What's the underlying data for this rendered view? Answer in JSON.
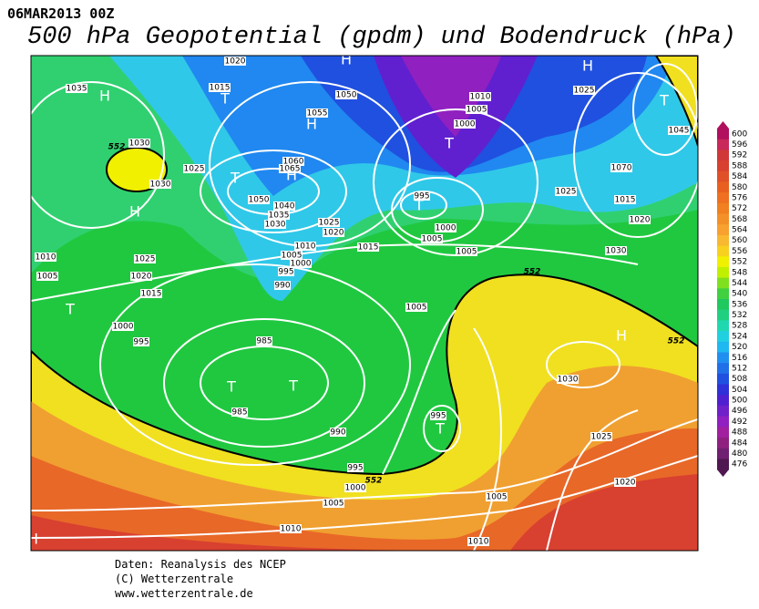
{
  "header": {
    "date": "06MAR2013 00Z",
    "title": "500 hPa Geopotential (gpdm) und Bodendruck (hPa)"
  },
  "colorbar": {
    "labels": [
      600,
      596,
      592,
      588,
      584,
      580,
      576,
      572,
      568,
      564,
      560,
      556,
      552,
      548,
      544,
      540,
      536,
      532,
      528,
      524,
      520,
      516,
      512,
      508,
      504,
      500,
      496,
      492,
      488,
      484,
      480,
      476
    ]
  },
  "map": {
    "isobar_labels": [
      1020,
      1035,
      1015,
      1050,
      1055,
      1030,
      1025,
      1030,
      1060,
      1065,
      1050,
      1040,
      1035,
      1030,
      1025,
      1020,
      1015,
      1010,
      1005,
      1000,
      995,
      990,
      1010,
      1025,
      1020,
      1015,
      1005,
      1000,
      995,
      985,
      985,
      990,
      995,
      1000,
      1005,
      1010,
      1005,
      1010,
      1020,
      1025,
      1030,
      995,
      1005,
      1000,
      1005,
      1005,
      995,
      1010,
      1005,
      1000,
      1025,
      1045,
      1070,
      1025,
      1015,
      1020,
      1030
    ],
    "pressure_centers": [
      "H",
      "T",
      "H",
      "H",
      "T",
      "H",
      "H",
      "H",
      "T",
      "T",
      "T",
      "T",
      "T",
      "T",
      "T",
      "H",
      "H"
    ],
    "contour_552_labels": [
      552,
      552,
      552,
      552
    ]
  },
  "footer": {
    "source": "Daten: Reanalysis des NCEP",
    "copyright": "(C) Wetterzentrale",
    "url": "www.wetterzentrale.de"
  }
}
